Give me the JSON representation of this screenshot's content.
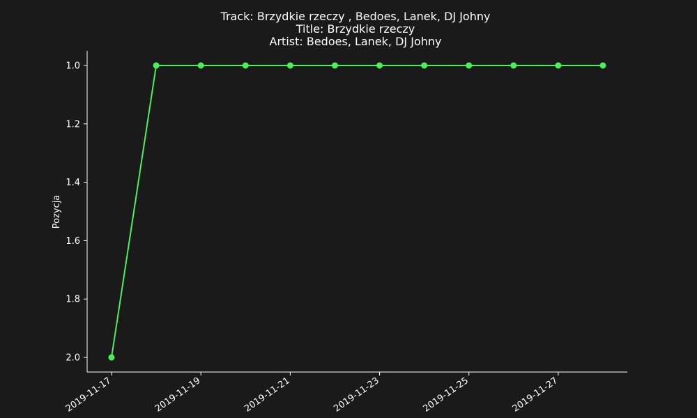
{
  "chart_data": {
    "type": "line",
    "title_lines": [
      "Track:  Brzydkie rzeczy , Bedoes, Lanek, DJ Johny",
      "Title:  Brzydkie rzeczy",
      "Artist:  Bedoes, Lanek, DJ Johny"
    ],
    "xlabel": "",
    "ylabel": "Pozycja",
    "x": [
      "2019-11-17",
      "2019-11-18",
      "2019-11-19",
      "2019-11-20",
      "2019-11-21",
      "2019-11-22",
      "2019-11-23",
      "2019-11-24",
      "2019-11-25",
      "2019-11-26",
      "2019-11-27",
      "2019-11-28"
    ],
    "series": [
      {
        "values": [
          2.0,
          1.0,
          1.0,
          1.0,
          1.0,
          1.0,
          1.0,
          1.0,
          1.0,
          1.0,
          1.0,
          1.0
        ]
      }
    ],
    "x_ticks": [
      "2019-11-17",
      "2019-11-19",
      "2019-11-21",
      "2019-11-23",
      "2019-11-25",
      "2019-11-27"
    ],
    "y_ticks": [
      "1.0",
      "1.2",
      "1.4",
      "1.6",
      "1.8",
      "2.0"
    ],
    "ylim": [
      2.05,
      0.95
    ],
    "y_inverted": true,
    "grid": false,
    "colors": {
      "background": "#1a1a1a",
      "line": "#4cef5c",
      "text": "#ffffff"
    }
  }
}
